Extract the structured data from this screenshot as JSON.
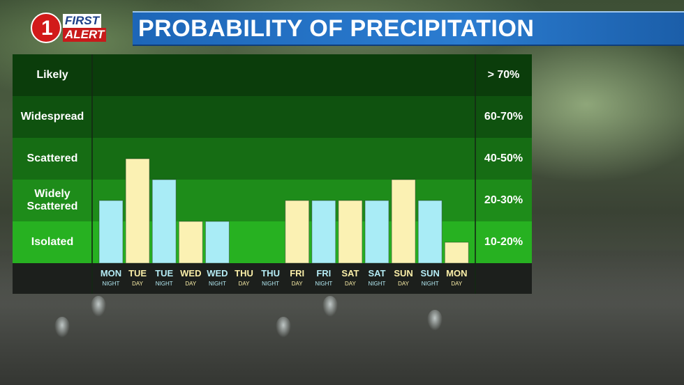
{
  "header": {
    "title": "PROBABILITY OF PRECIPITATION"
  },
  "logo": {
    "number": "1",
    "line1": "FIRST",
    "line2": "ALERT"
  },
  "chart_data": {
    "type": "bar",
    "title": "PROBABILITY OF PRECIPITATION",
    "categories": [
      {
        "day": "MON",
        "part": "NIGHT"
      },
      {
        "day": "TUE",
        "part": "DAY"
      },
      {
        "day": "TUE",
        "part": "NIGHT"
      },
      {
        "day": "WED",
        "part": "DAY"
      },
      {
        "day": "WED",
        "part": "NIGHT"
      },
      {
        "day": "THU",
        "part": "DAY"
      },
      {
        "day": "THU",
        "part": "NIGHT"
      },
      {
        "day": "FRI",
        "part": "DAY"
      },
      {
        "day": "FRI",
        "part": "NIGHT"
      },
      {
        "day": "SAT",
        "part": "DAY"
      },
      {
        "day": "SAT",
        "part": "NIGHT"
      },
      {
        "day": "SUN",
        "part": "DAY"
      },
      {
        "day": "SUN",
        "part": "NIGHT"
      },
      {
        "day": "MON",
        "part": "DAY"
      }
    ],
    "values": [
      30,
      50,
      40,
      20,
      20,
      0,
      0,
      30,
      30,
      30,
      30,
      40,
      30,
      10
    ],
    "ylim": [
      0,
      100
    ],
    "bands": [
      {
        "label": "Likely",
        "range": "> 70%",
        "color": "#0b3d0b"
      },
      {
        "label": "Widespread",
        "range": "60-70%",
        "color": "#0f520f"
      },
      {
        "label": "Scattered",
        "range": "40-50%",
        "color": "#166d14"
      },
      {
        "label": "Widely\nScattered",
        "range": "20-30%",
        "color": "#1e8c1a"
      },
      {
        "label": "Isolated",
        "range": "10-20%",
        "color": "#27b121"
      }
    ],
    "colors": {
      "day": "#fbf1b3",
      "night": "#a9ecf6",
      "day_text": "#fbefa8",
      "night_text": "#b5ecf5"
    }
  }
}
